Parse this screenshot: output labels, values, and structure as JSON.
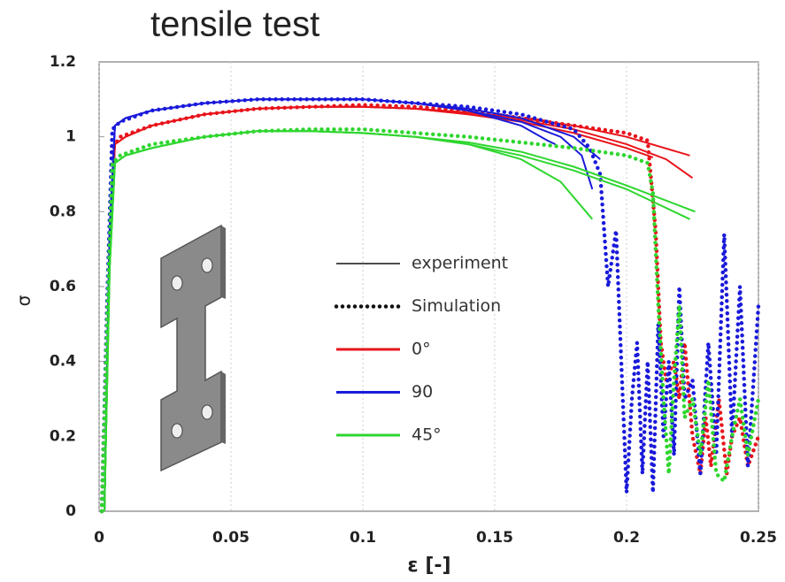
{
  "chart_data": {
    "type": "line",
    "title": "tensile test",
    "x_label": "ε [-]",
    "y_label": "σ",
    "xlim": [
      0,
      0.25
    ],
    "ylim": [
      0,
      1.2
    ],
    "xticks": [
      0,
      0.05,
      0.1,
      0.15,
      0.2,
      0.25
    ],
    "yticks": [
      0,
      0.2,
      0.4,
      0.6,
      0.8,
      1,
      1.2
    ],
    "grid": true,
    "line_styles": [
      {
        "name": "experiment",
        "style": "solid"
      },
      {
        "name": "Simulation",
        "style": "dotted"
      }
    ],
    "series": [
      {
        "name": "0°",
        "color": "#e8141b",
        "curves": [
          {
            "style": "solid",
            "x": [
              0.002,
              0.004,
              0.006,
              0.01,
              0.02,
              0.04,
              0.06,
              0.08,
              0.1,
              0.12,
              0.14,
              0.16,
              0.18,
              0.2,
              0.21
            ],
            "values": [
              0,
              0.7,
              0.98,
              1.0,
              1.03,
              1.06,
              1.075,
              1.08,
              1.08,
              1.075,
              1.06,
              1.04,
              1.01,
              0.97,
              0.945
            ]
          },
          {
            "style": "solid",
            "x": [
              0.002,
              0.004,
              0.006,
              0.01,
              0.02,
              0.04,
              0.06,
              0.08,
              0.1,
              0.12,
              0.14,
              0.16,
              0.18,
              0.2,
              0.224
            ],
            "values": [
              0,
              0.7,
              0.98,
              1.0,
              1.03,
              1.06,
              1.075,
              1.08,
              1.08,
              1.075,
              1.065,
              1.05,
              1.03,
              1.0,
              0.95
            ]
          },
          {
            "style": "solid",
            "x": [
              0.002,
              0.004,
              0.006,
              0.01,
              0.02,
              0.04,
              0.06,
              0.08,
              0.1,
              0.12,
              0.14,
              0.16,
              0.18,
              0.2,
              0.215,
              0.225
            ],
            "values": [
              0,
              0.7,
              0.98,
              1.0,
              1.03,
              1.06,
              1.075,
              1.08,
              1.08,
              1.075,
              1.06,
              1.045,
              1.02,
              0.98,
              0.94,
              0.89
            ]
          },
          {
            "style": "dotted",
            "x": [
              0.001,
              0.003,
              0.005,
              0.008,
              0.02,
              0.04,
              0.06,
              0.08,
              0.1,
              0.12,
              0.14,
              0.16,
              0.18,
              0.2,
              0.208,
              0.211,
              0.213,
              0.215,
              0.218,
              0.22,
              0.222,
              0.225,
              0.228,
              0.23,
              0.232,
              0.235,
              0.238,
              0.24,
              0.243,
              0.246,
              0.25
            ],
            "values": [
              0,
              0.5,
              0.97,
              1.0,
              1.03,
              1.06,
              1.075,
              1.08,
              1.085,
              1.08,
              1.07,
              1.05,
              1.03,
              1.01,
              0.99,
              0.75,
              0.45,
              0.35,
              0.4,
              0.3,
              0.45,
              0.2,
              0.1,
              0.25,
              0.12,
              0.3,
              0.1,
              0.2,
              0.25,
              0.12,
              0.2
            ]
          }
        ]
      },
      {
        "name": "90",
        "color": "#1a1adb",
        "curves": [
          {
            "style": "solid",
            "x": [
              0.002,
              0.004,
              0.006,
              0.01,
              0.02,
              0.04,
              0.06,
              0.08,
              0.1,
              0.12,
              0.14,
              0.16,
              0.17,
              0.173
            ],
            "values": [
              0,
              0.75,
              1.03,
              1.05,
              1.07,
              1.09,
              1.1,
              1.1,
              1.1,
              1.09,
              1.07,
              1.03,
              0.99,
              0.98
            ]
          },
          {
            "style": "solid",
            "x": [
              0.002,
              0.004,
              0.006,
              0.01,
              0.02,
              0.04,
              0.06,
              0.08,
              0.1,
              0.12,
              0.14,
              0.16,
              0.175,
              0.183,
              0.187
            ],
            "values": [
              0,
              0.75,
              1.03,
              1.05,
              1.07,
              1.09,
              1.1,
              1.1,
              1.1,
              1.09,
              1.07,
              1.04,
              1.0,
              0.95,
              0.86
            ]
          },
          {
            "style": "solid",
            "x": [
              0.002,
              0.004,
              0.006,
              0.01,
              0.02,
              0.04,
              0.06,
              0.08,
              0.1,
              0.12,
              0.14,
              0.16,
              0.18,
              0.19
            ],
            "values": [
              0,
              0.75,
              1.03,
              1.05,
              1.07,
              1.09,
              1.1,
              1.1,
              1.1,
              1.09,
              1.075,
              1.05,
              1.0,
              0.94
            ]
          },
          {
            "style": "dotted",
            "x": [
              0.001,
              0.003,
              0.005,
              0.008,
              0.02,
              0.04,
              0.06,
              0.08,
              0.1,
              0.12,
              0.14,
              0.16,
              0.18,
              0.186,
              0.19,
              0.193,
              0.196,
              0.198,
              0.2,
              0.202,
              0.204,
              0.206,
              0.208,
              0.21,
              0.212,
              0.214,
              0.216,
              0.218,
              0.22,
              0.222,
              0.225,
              0.228,
              0.231,
              0.234,
              0.237,
              0.24,
              0.243,
              0.246,
              0.25
            ],
            "values": [
              0,
              0.55,
              1.02,
              1.04,
              1.07,
              1.09,
              1.1,
              1.1,
              1.1,
              1.09,
              1.08,
              1.06,
              1.02,
              0.97,
              0.9,
              0.6,
              0.75,
              0.4,
              0.05,
              0.3,
              0.45,
              0.1,
              0.4,
              0.05,
              0.5,
              0.2,
              0.4,
              0.15,
              0.6,
              0.3,
              0.35,
              0.1,
              0.45,
              0.15,
              0.74,
              0.2,
              0.6,
              0.12,
              0.55
            ]
          }
        ]
      },
      {
        "name": "45°",
        "color": "#2fd62f",
        "curves": [
          {
            "style": "solid",
            "x": [
              0.002,
              0.004,
              0.006,
              0.01,
              0.02,
              0.04,
              0.06,
              0.08,
              0.1,
              0.12,
              0.14,
              0.16,
              0.175,
              0.187
            ],
            "values": [
              0,
              0.65,
              0.93,
              0.95,
              0.97,
              1.0,
              1.015,
              1.015,
              1.01,
              1.0,
              0.98,
              0.94,
              0.88,
              0.78
            ]
          },
          {
            "style": "solid",
            "x": [
              0.002,
              0.004,
              0.006,
              0.01,
              0.02,
              0.04,
              0.06,
              0.08,
              0.1,
              0.12,
              0.14,
              0.16,
              0.18,
              0.2,
              0.226
            ],
            "values": [
              0,
              0.65,
              0.93,
              0.95,
              0.97,
              1.0,
              1.015,
              1.015,
              1.01,
              1.0,
              0.985,
              0.96,
              0.92,
              0.87,
              0.8
            ]
          },
          {
            "style": "solid",
            "x": [
              0.002,
              0.004,
              0.006,
              0.01,
              0.02,
              0.04,
              0.06,
              0.08,
              0.1,
              0.12,
              0.14,
              0.16,
              0.18,
              0.2,
              0.224
            ],
            "values": [
              0,
              0.65,
              0.93,
              0.95,
              0.97,
              1.0,
              1.015,
              1.015,
              1.01,
              1.0,
              0.98,
              0.95,
              0.91,
              0.86,
              0.78
            ]
          },
          {
            "style": "dotted",
            "x": [
              0.001,
              0.003,
              0.005,
              0.008,
              0.02,
              0.04,
              0.06,
              0.08,
              0.1,
              0.12,
              0.14,
              0.16,
              0.18,
              0.2,
              0.208,
              0.21,
              0.212,
              0.214,
              0.216,
              0.218,
              0.22,
              0.222,
              0.225,
              0.228,
              0.231,
              0.234,
              0.237,
              0.24,
              0.243,
              0.246,
              0.25
            ],
            "values": [
              0,
              0.5,
              0.93,
              0.95,
              0.98,
              1.0,
              1.015,
              1.02,
              1.02,
              1.01,
              1.0,
              0.985,
              0.97,
              0.95,
              0.93,
              0.85,
              0.55,
              0.3,
              0.1,
              0.35,
              0.55,
              0.25,
              0.3,
              0.15,
              0.35,
              0.1,
              0.08,
              0.2,
              0.3,
              0.15,
              0.3
            ]
          }
        ]
      }
    ]
  }
}
